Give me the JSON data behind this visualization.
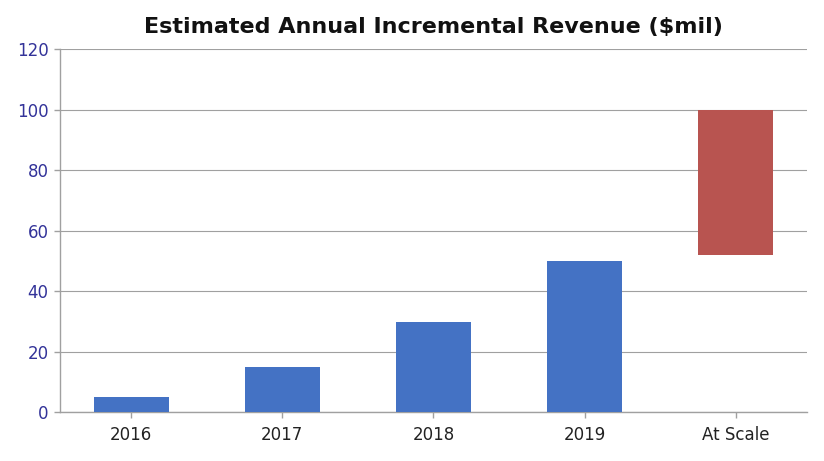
{
  "title": "Estimated Annual Incremental Revenue ($mil)",
  "categories": [
    "2016",
    "2017",
    "2018",
    "2019",
    "At Scale"
  ],
  "values": [
    5,
    15,
    30,
    50,
    100
  ],
  "bar_bottoms": [
    0,
    0,
    0,
    0,
    52
  ],
  "bar_colors": [
    "#4472C4",
    "#4472C4",
    "#4472C4",
    "#4472C4",
    "#B85450"
  ],
  "ylim": [
    0,
    120
  ],
  "yticks": [
    0,
    20,
    40,
    60,
    80,
    100,
    120
  ],
  "background_color": "#ffffff",
  "title_fontsize": 16,
  "tick_fontsize": 12,
  "bar_width": 0.5,
  "grid_color": "#A0A0A0",
  "spine_color": "#A0A0A0",
  "tick_color": "#333399",
  "figsize": [
    8.24,
    4.61
  ],
  "dpi": 100
}
